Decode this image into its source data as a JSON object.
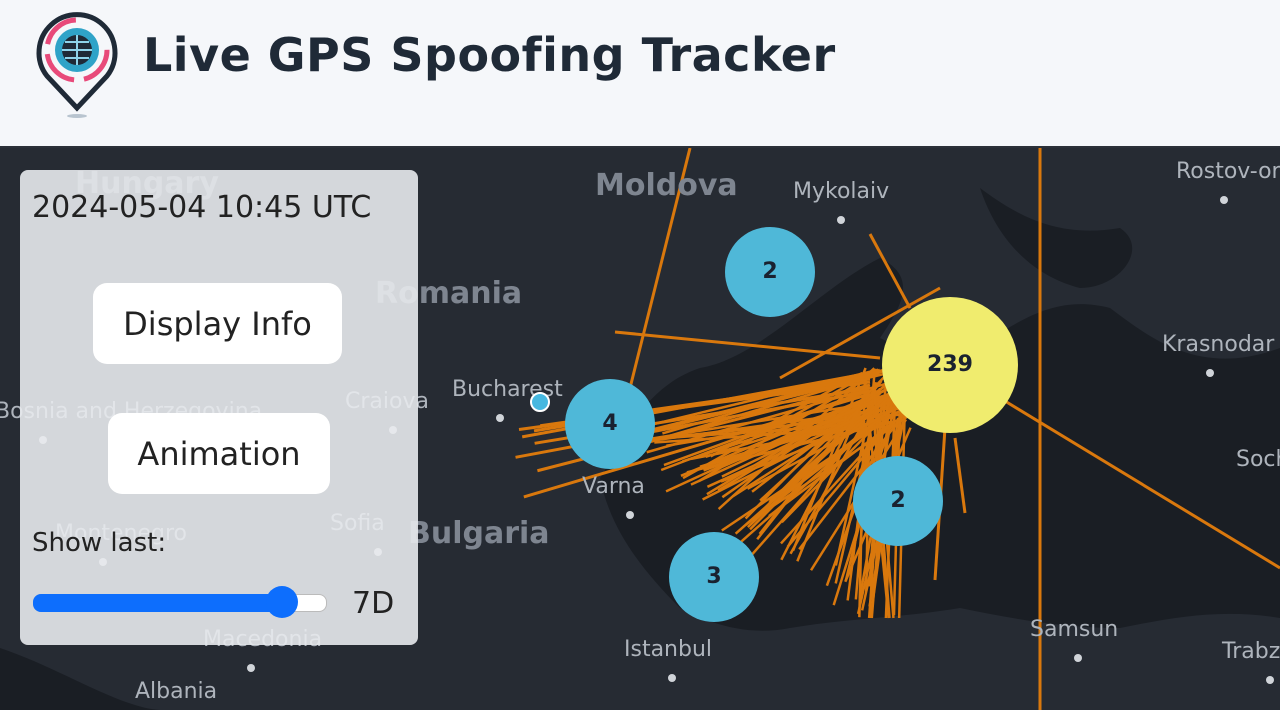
{
  "header": {
    "title": "Live GPS Spoofing Tracker"
  },
  "panel": {
    "timestamp": "2024-05-04 10:45 UTC",
    "buttons": [
      "Display Info",
      "Animation"
    ],
    "slider_label": "Show last:",
    "slider_value": "7D"
  },
  "map": {
    "places": [
      "Hungary",
      "Moldova",
      "Mykolaiv",
      "Rostov-on-Don",
      "Romania",
      "Krasnodar",
      "Bucharest",
      "Craiova",
      "Bosnia and Herzegovina",
      "Varna",
      "Sofia",
      "Bulgaria",
      "Montenegro",
      "Sochi",
      "Istanbul",
      "Samsun",
      "Macedonia",
      "Trabzon",
      "Albania"
    ],
    "clusters": [
      2,
      239,
      4,
      2,
      3
    ]
  }
}
